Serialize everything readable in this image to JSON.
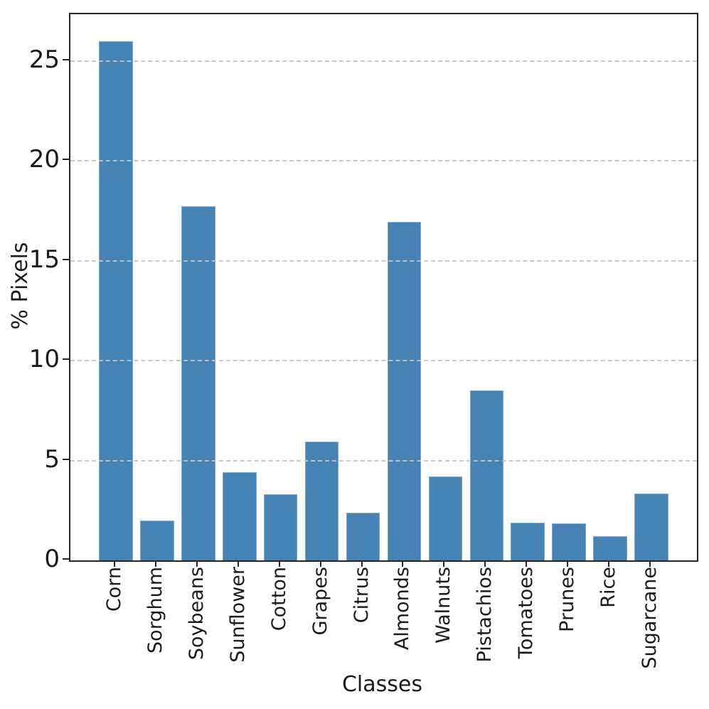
{
  "chart_data": {
    "type": "bar",
    "title": "",
    "xlabel": "Classes",
    "ylabel": "% Pixels",
    "categories": [
      "Corn",
      "Sorghum",
      "Soybeans",
      "Sunflower",
      "Cotton",
      "Grapes",
      "Citrus",
      "Almonds",
      "Walnuts",
      "Pistachios",
      "Tomatoes",
      "Prunes",
      "Rice",
      "Sugarcane"
    ],
    "values": [
      26.0,
      2.0,
      17.75,
      4.4,
      3.3,
      5.95,
      2.4,
      16.95,
      4.2,
      8.5,
      1.9,
      1.85,
      1.2,
      3.35
    ],
    "yticks": [
      0,
      5,
      10,
      15,
      20,
      25
    ],
    "ylim": [
      0,
      27.35
    ],
    "grid": "horizontal-dashed",
    "legend": "none",
    "bar_color": "#4682b4",
    "grid_color": "#c3c3c3",
    "spine_color": "#262626",
    "text_color": "#1a1a1a"
  }
}
